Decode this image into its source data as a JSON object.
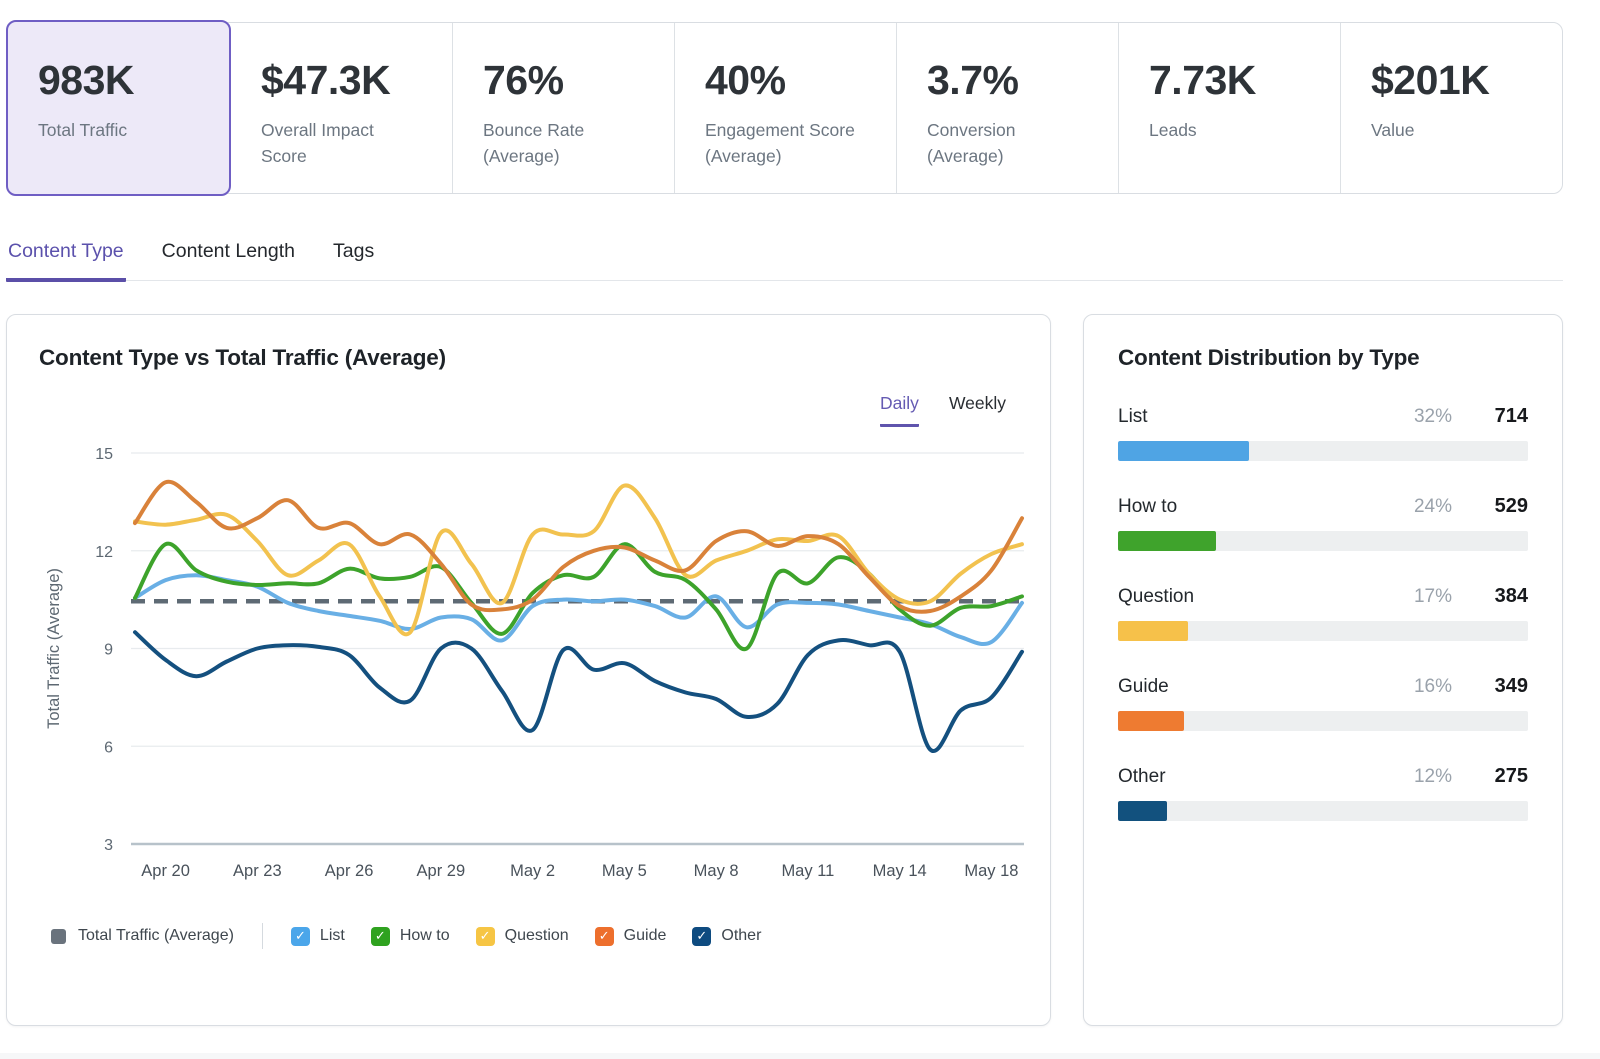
{
  "kpis": [
    {
      "value": "983K",
      "label": "Total Traffic",
      "active": true
    },
    {
      "value": "$47.3K",
      "label": "Overall Impact Score",
      "active": false
    },
    {
      "value": "76%",
      "label": "Bounce Rate (Average)",
      "active": false
    },
    {
      "value": "40%",
      "label": "Engagement Score (Average)",
      "active": false
    },
    {
      "value": "3.7%",
      "label": "Conversion (Average)",
      "active": false
    },
    {
      "value": "7.73K",
      "label": "Leads",
      "active": false
    },
    {
      "value": "$201K",
      "label": "Value",
      "active": false
    }
  ],
  "tabs": {
    "items": [
      {
        "label": "Content Type",
        "active": true
      },
      {
        "label": "Content Length",
        "active": false
      },
      {
        "label": "Tags",
        "active": false
      }
    ]
  },
  "chart": {
    "panel_title": "Content Type vs Total Traffic (Average)",
    "toggle": {
      "options": [
        {
          "label": "Daily",
          "active": true
        },
        {
          "label": "Weekly",
          "active": false
        }
      ]
    },
    "chart_data": {
      "type": "line",
      "title": "Content Type vs Total Traffic (Average)",
      "ylabel": "Total Traffic (Average)",
      "ylim": [
        3,
        15
      ],
      "y_ticks": [
        3,
        6,
        9,
        12,
        15
      ],
      "grid": true,
      "legend_position": "bottom",
      "n_points": 30,
      "x_tick_labels": [
        "Apr 20",
        "Apr 23",
        "Apr 26",
        "Apr 29",
        "May 2",
        "May 5",
        "May 8",
        "May 11",
        "May 14",
        "May 18"
      ],
      "x_tick_indices": [
        1,
        4,
        7,
        10,
        13,
        16,
        19,
        22,
        25,
        28
      ],
      "average_line": {
        "label": "Total Traffic (Average)",
        "value": 10.45,
        "color": "#5E6A74",
        "style": "dashed"
      },
      "series": [
        {
          "name": "List",
          "color": "#69AFE5",
          "checkbox_color": "#4BA6EA",
          "checked": true,
          "values": [
            10.55,
            11.1,
            11.25,
            11.1,
            10.9,
            10.4,
            10.15,
            10.0,
            9.85,
            9.6,
            9.95,
            9.9,
            9.25,
            10.3,
            10.5,
            10.45,
            10.5,
            10.3,
            9.95,
            10.6,
            9.65,
            10.35,
            10.4,
            10.35,
            10.15,
            9.95,
            9.75,
            9.35,
            9.2,
            10.4
          ]
        },
        {
          "name": "How to",
          "color": "#3DA32B",
          "checkbox_color": "#2FA21F",
          "checked": true,
          "values": [
            10.55,
            12.2,
            11.4,
            11.05,
            10.95,
            11.0,
            11.0,
            11.45,
            11.15,
            11.2,
            11.5,
            10.4,
            9.45,
            10.7,
            11.25,
            11.2,
            12.2,
            11.35,
            11.1,
            10.2,
            9.0,
            11.3,
            11.0,
            11.8,
            11.3,
            10.2,
            9.7,
            10.25,
            10.3,
            10.6
          ]
        },
        {
          "name": "Question",
          "color": "#F2C24F",
          "checkbox_color": "#F6C544",
          "checked": true,
          "values": [
            12.9,
            12.8,
            12.95,
            13.1,
            12.3,
            11.25,
            11.7,
            12.2,
            10.6,
            9.5,
            12.55,
            11.6,
            10.4,
            12.5,
            12.5,
            12.6,
            14.0,
            13.0,
            11.25,
            11.7,
            12.0,
            12.35,
            12.3,
            12.45,
            11.3,
            10.5,
            10.45,
            11.3,
            11.9,
            12.2
          ]
        },
        {
          "name": "Guide",
          "color": "#D9823A",
          "checkbox_color": "#ED6F2D",
          "checked": true,
          "values": [
            12.85,
            14.1,
            13.5,
            12.7,
            13.0,
            13.55,
            12.7,
            12.85,
            12.2,
            12.5,
            11.6,
            10.35,
            10.2,
            10.5,
            11.5,
            12.0,
            12.1,
            11.7,
            11.4,
            12.3,
            12.6,
            12.15,
            12.45,
            12.2,
            11.2,
            10.3,
            10.15,
            10.6,
            11.4,
            13.0
          ]
        },
        {
          "name": "Other",
          "color": "#14507F",
          "checkbox_color": "#0E4B80",
          "checked": true,
          "values": [
            9.5,
            8.65,
            8.15,
            8.6,
            9.0,
            9.1,
            9.05,
            8.8,
            7.8,
            7.4,
            9.0,
            9.0,
            7.7,
            6.5,
            8.95,
            8.35,
            8.55,
            8.0,
            7.65,
            7.45,
            6.9,
            7.3,
            8.8,
            9.25,
            9.1,
            8.9,
            5.9,
            7.1,
            7.5,
            8.9
          ]
        }
      ]
    }
  },
  "distribution": {
    "title": "Content Distribution by Type",
    "rows": [
      {
        "label": "List",
        "pct": 32,
        "pct_label": "32%",
        "count": "714",
        "color": "#4FA4E4"
      },
      {
        "label": "How to",
        "pct": 24,
        "pct_label": "24%",
        "count": "529",
        "color": "#3FA32C"
      },
      {
        "label": "Question",
        "pct": 17,
        "pct_label": "17%",
        "count": "384",
        "color": "#F6C14A"
      },
      {
        "label": "Guide",
        "pct": 16,
        "pct_label": "16%",
        "count": "349",
        "color": "#EE7B31"
      },
      {
        "label": "Other",
        "pct": 12,
        "pct_label": "12%",
        "count": "275",
        "color": "#12517E"
      }
    ]
  }
}
